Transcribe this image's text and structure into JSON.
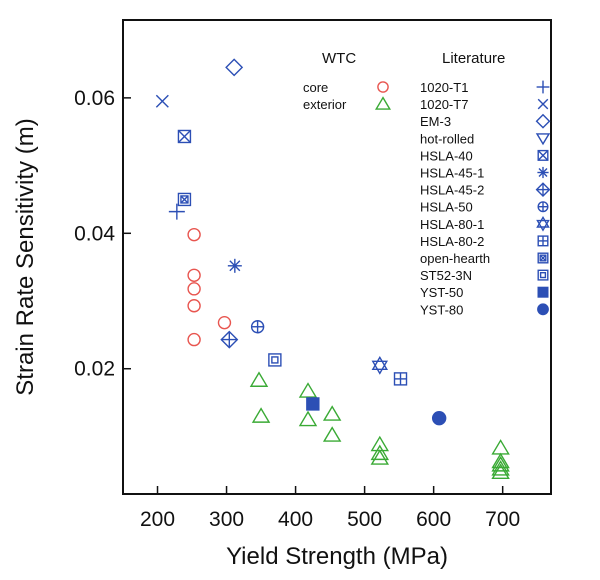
{
  "chart_data": {
    "type": "scatter",
    "xlabel": "Yield Strength (MPa)",
    "ylabel": "Strain Rate Sensitivity (m)",
    "xlim": [
      150,
      770
    ],
    "ylim": [
      0.0015,
      0.0715
    ],
    "x_ticks": [
      200,
      300,
      400,
      500,
      600,
      700
    ],
    "y_ticks": [
      0.02,
      0.04,
      0.06
    ],
    "x_tick_labels": [
      "200",
      "300",
      "400",
      "500",
      "600",
      "700"
    ],
    "y_tick_labels": [
      "0.02",
      "0.04",
      "0.06"
    ],
    "grid": false,
    "legend_placement": "top-right",
    "colors": {
      "wtc_core": "#e8554f",
      "wtc_exterior": "#3aaa35",
      "literature": "#2c4fb5",
      "axis": "#111111"
    },
    "legend": {
      "wtc_heading": "WTC",
      "literature_heading": "Literature"
    },
    "series": [
      {
        "name": "core",
        "group": "WTC",
        "marker": "circle-open",
        "color": "#e8554f",
        "points": [
          [
            253,
            0.0398
          ],
          [
            253,
            0.0338
          ],
          [
            253,
            0.0318
          ],
          [
            253,
            0.0293
          ],
          [
            253,
            0.0243
          ],
          [
            297,
            0.0268
          ]
        ]
      },
      {
        "name": "exterior",
        "group": "WTC",
        "marker": "triangle-up-open",
        "color": "#3aaa35",
        "points": [
          [
            347,
            0.0183
          ],
          [
            350,
            0.013
          ],
          [
            418,
            0.0167
          ],
          [
            418,
            0.0125
          ],
          [
            453,
            0.0133
          ],
          [
            453,
            0.0102
          ],
          [
            522,
            0.0088
          ],
          [
            522,
            0.0075
          ],
          [
            522,
            0.0068
          ],
          [
            697,
            0.0083
          ],
          [
            697,
            0.0063
          ],
          [
            697,
            0.0058
          ],
          [
            697,
            0.0052
          ],
          [
            697,
            0.0047
          ]
        ]
      },
      {
        "name": "1020-T1",
        "group": "Literature",
        "marker": "plus",
        "color": "#2c4fb5",
        "points": [
          [
            228,
            0.0432
          ]
        ]
      },
      {
        "name": "1020-T7",
        "group": "Literature",
        "marker": "x",
        "color": "#2c4fb5",
        "points": [
          [
            207,
            0.0595
          ]
        ]
      },
      {
        "name": "EM-3",
        "group": "Literature",
        "marker": "diamond-open",
        "color": "#2c4fb5",
        "points": [
          [
            311,
            0.0645
          ]
        ]
      },
      {
        "name": "hot-rolled",
        "group": "Literature",
        "marker": "triangle-down-open",
        "color": "#2c4fb5",
        "points": []
      },
      {
        "name": "HSLA-40",
        "group": "Literature",
        "marker": "square-x",
        "color": "#2c4fb5",
        "points": [
          [
            239,
            0.0543
          ]
        ]
      },
      {
        "name": "HSLA-45-1",
        "group": "Literature",
        "marker": "asterisk",
        "color": "#2c4fb5",
        "points": [
          [
            312,
            0.0352
          ]
        ]
      },
      {
        "name": "HSLA-45-2",
        "group": "Literature",
        "marker": "diamond-plus",
        "color": "#2c4fb5",
        "points": [
          [
            304,
            0.0243
          ]
        ]
      },
      {
        "name": "HSLA-50",
        "group": "Literature",
        "marker": "circle-plus",
        "color": "#2c4fb5",
        "points": [
          [
            345,
            0.0262
          ]
        ]
      },
      {
        "name": "HSLA-80-1",
        "group": "Literature",
        "marker": "star-of-david",
        "color": "#2c4fb5",
        "points": [
          [
            522,
            0.0205
          ]
        ]
      },
      {
        "name": "HSLA-80-2",
        "group": "Literature",
        "marker": "square-plus",
        "color": "#2c4fb5",
        "points": [
          [
            552,
            0.0185
          ]
        ]
      },
      {
        "name": "open-hearth",
        "group": "Literature",
        "marker": "square-x-small",
        "color": "#2c4fb5",
        "points": [
          [
            239,
            0.045
          ]
        ]
      },
      {
        "name": "ST52-3N",
        "group": "Literature",
        "marker": "square-square",
        "color": "#2c4fb5",
        "points": [
          [
            370,
            0.0213
          ]
        ]
      },
      {
        "name": "YST-50",
        "group": "Literature",
        "marker": "square-filled",
        "color": "#2c4fb5",
        "points": [
          [
            425,
            0.0148
          ]
        ]
      },
      {
        "name": "YST-80",
        "group": "Literature",
        "marker": "circle-filled",
        "color": "#2c4fb5",
        "points": [
          [
            608,
            0.0127
          ]
        ]
      }
    ]
  }
}
